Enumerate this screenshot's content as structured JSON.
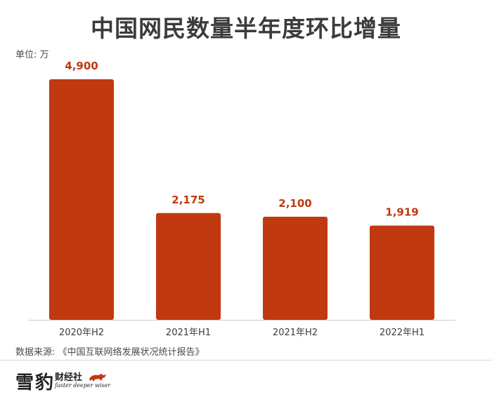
{
  "unit_label": "单位: 万",
  "source_label": "数据来源: 《中国互联网络发展状况统计报告》",
  "logo": {
    "main": "雪豹",
    "sub": "财经社",
    "tagline": "faster deeper wiser"
  },
  "colors": {
    "bar": "#c0390f",
    "data_label": "#c0390f",
    "axis": "#cccccc",
    "text": "#3b3b3b"
  },
  "chart_data": {
    "type": "bar",
    "title": "中国网民数量半年度环比增量",
    "categories": [
      "2020年H2",
      "2021年H1",
      "2021年H2",
      "2022年H1"
    ],
    "values": [
      4900,
      2175,
      2100,
      1919
    ],
    "data_labels": [
      "4,900",
      "2,175",
      "2,100",
      "1,919"
    ],
    "ylim": [
      0,
      4900
    ],
    "grid": false,
    "legend": "none"
  }
}
